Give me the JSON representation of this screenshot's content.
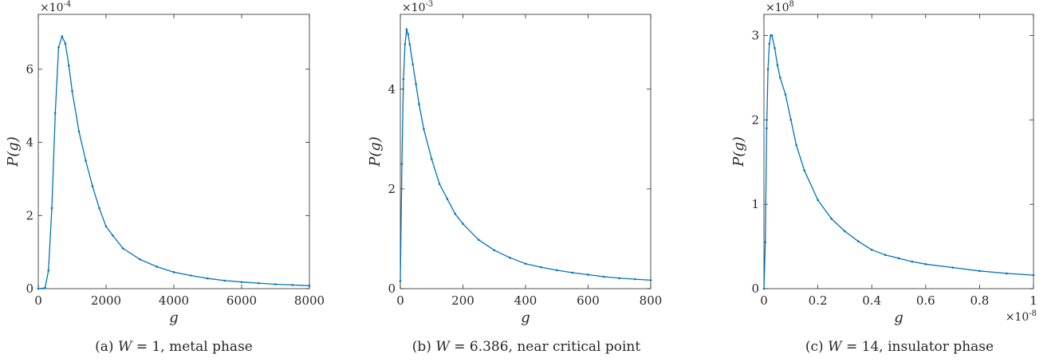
{
  "accent_color": "#0072BD",
  "chart_data": [
    {
      "type": "line",
      "panel": "a",
      "caption": "(a) W = 1, metal phase",
      "xlabel": "g",
      "ylabel": "P(g)",
      "y_exponent": "×10-4",
      "x_exponent": "",
      "xlim": [
        0,
        8000
      ],
      "ylim": [
        0,
        0.00075
      ],
      "xticks": [
        0,
        2000,
        4000,
        6000,
        8000
      ],
      "xtick_labels": [
        "0",
        "2000",
        "4000",
        "6000",
        "8000"
      ],
      "yticks": [
        0,
        0.0002,
        0.0004,
        0.0006
      ],
      "ytick_labels": [
        "0",
        "2",
        "4",
        "6"
      ],
      "series": [
        {
          "color": "#0072BD",
          "x": [
            0,
            200,
            300,
            400,
            500,
            600,
            700,
            800,
            900,
            1000,
            1200,
            1400,
            1600,
            1800,
            2000,
            2200,
            2500,
            3000,
            3500,
            4000,
            4500,
            5000,
            5500,
            6000,
            6500,
            7000,
            7500,
            8000
          ],
          "y": [
            0,
            2e-06,
            5e-05,
            0.00022,
            0.00048,
            0.00066,
            0.00069,
            0.00067,
            0.00061,
            0.00054,
            0.00043,
            0.00035,
            0.00028,
            0.00022,
            0.00017,
            0.000145,
            0.00011,
            8e-05,
            6e-05,
            4.5e-05,
            3.6e-05,
            2.8e-05,
            2.2e-05,
            1.8e-05,
            1.5e-05,
            1.2e-05,
            1e-05,
            8e-06
          ]
        }
      ]
    },
    {
      "type": "line",
      "panel": "b",
      "caption": "(b) W = 6.386, near critical point",
      "xlabel": "g",
      "ylabel": "P(g)",
      "y_exponent": "×10-3",
      "x_exponent": "",
      "xlim": [
        0,
        800
      ],
      "ylim": [
        0,
        0.0055
      ],
      "xticks": [
        0,
        200,
        400,
        600,
        800
      ],
      "xtick_labels": [
        "0",
        "200",
        "400",
        "600",
        "800"
      ],
      "yticks": [
        0,
        0.002,
        0.004
      ],
      "ytick_labels": [
        "0",
        "2",
        "4"
      ],
      "series": [
        {
          "color": "#0072BD",
          "x": [
            0,
            5,
            10,
            15,
            20,
            25,
            30,
            40,
            50,
            60,
            75,
            100,
            125,
            150,
            175,
            200,
            250,
            300,
            350,
            400,
            450,
            500,
            550,
            600,
            650,
            700,
            750,
            800
          ],
          "y": [
            0.00015,
            0.0025,
            0.0042,
            0.0049,
            0.0052,
            0.0051,
            0.0049,
            0.0045,
            0.0041,
            0.0037,
            0.0032,
            0.0026,
            0.0021,
            0.0018,
            0.0015,
            0.0013,
            0.00098,
            0.00077,
            0.00062,
            0.0005,
            0.00043,
            0.00037,
            0.00032,
            0.00028,
            0.00024,
            0.00021,
            0.00019,
            0.00017
          ]
        }
      ]
    },
    {
      "type": "line",
      "panel": "c",
      "caption": "(c) W = 14, insulator phase",
      "xlabel": "g",
      "ylabel": "P(g)",
      "y_exponent": "×108",
      "x_exponent": "×10-8",
      "xlim": [
        0,
        1e-08
      ],
      "ylim": [
        0,
        325000000.0
      ],
      "xticks": [
        0,
        2e-09,
        4e-09,
        6e-09,
        8e-09,
        1e-08
      ],
      "xtick_labels": [
        "0",
        "0.2",
        "0.4",
        "0.6",
        "0.8",
        "1"
      ],
      "yticks": [
        0,
        100000000.0,
        200000000.0,
        300000000.0
      ],
      "ytick_labels": [
        "0",
        "1",
        "2",
        "3"
      ],
      "series": [
        {
          "color": "#0072BD",
          "x": [
            0,
            5e-11,
            1e-10,
            1.5e-10,
            2e-10,
            2.5e-10,
            3e-10,
            4e-10,
            5e-10,
            6e-10,
            8e-10,
            1e-09,
            1.2e-09,
            1.5e-09,
            2e-09,
            2.5e-09,
            3e-09,
            3.5e-09,
            4e-09,
            4.5e-09,
            5e-09,
            5.5e-09,
            6e-09,
            7e-09,
            8e-09,
            9e-09,
            1e-08
          ],
          "y": [
            0,
            55000000.0,
            190000000.0,
            260000000.0,
            290000000.0,
            300000000.0,
            300000000.0,
            285000000.0,
            265000000.0,
            250000000.0,
            230000000.0,
            200000000.0,
            170000000.0,
            140000000.0,
            105000000.0,
            83000000.0,
            68000000.0,
            56000000.0,
            46000000.0,
            40000000.0,
            36000000.0,
            32000000.0,
            29000000.0,
            25000000.0,
            21000000.0,
            18000000.0,
            16000000.0
          ]
        }
      ]
    }
  ]
}
